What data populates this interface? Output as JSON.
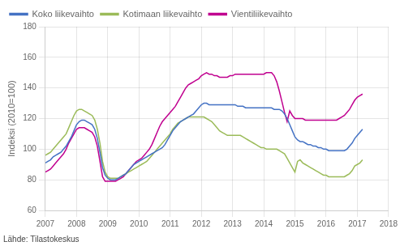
{
  "chart_data": {
    "type": "line",
    "ylabel": "Indeksi (2010=100)",
    "annotation": "Lähde: Tilastokeskus",
    "x": [
      2007,
      2007.0833333333,
      2007.1666666667,
      2007.25,
      2007.3333333333,
      2007.4166666667,
      2007.5,
      2007.5833333333,
      2007.6666666667,
      2007.75,
      2007.8333333333,
      2007.9166666667,
      2008,
      2008.0833333333,
      2008.1666666667,
      2008.25,
      2008.3333333333,
      2008.4166666667,
      2008.5,
      2008.5833333333,
      2008.6666666667,
      2008.75,
      2008.8333333333,
      2008.9166666667,
      2009,
      2009.0833333333,
      2009.1666666667,
      2009.25,
      2009.3333333333,
      2009.4166666667,
      2009.5,
      2009.5833333333,
      2009.6666666667,
      2009.75,
      2009.8333333333,
      2009.9166666667,
      2010,
      2010.0833333333,
      2010.1666666667,
      2010.25,
      2010.3333333333,
      2010.4166666667,
      2010.5,
      2010.5833333333,
      2010.6666666667,
      2010.75,
      2010.8333333333,
      2010.9166666667,
      2011,
      2011.0833333333,
      2011.1666666667,
      2011.25,
      2011.3333333333,
      2011.4166666667,
      2011.5,
      2011.5833333333,
      2011.6666666667,
      2011.75,
      2011.8333333333,
      2011.9166666667,
      2012,
      2012.0833333333,
      2012.1666666667,
      2012.25,
      2012.3333333333,
      2012.4166666667,
      2012.5,
      2012.5833333333,
      2012.6666666667,
      2012.75,
      2012.8333333333,
      2012.9166666667,
      2013,
      2013.0833333333,
      2013.1666666667,
      2013.25,
      2013.3333333333,
      2013.4166666667,
      2013.5,
      2013.5833333333,
      2013.6666666667,
      2013.75,
      2013.8333333333,
      2013.9166666667,
      2014,
      2014.0833333333,
      2014.1666666667,
      2014.25,
      2014.3333333333,
      2014.4166666667,
      2014.5,
      2014.5833333333,
      2014.6666666667,
      2014.75,
      2014.8333333333,
      2014.9166666667,
      2015,
      2015.0833333333,
      2015.1666666667,
      2015.25,
      2015.3333333333,
      2015.4166666667,
      2015.5,
      2015.5833333333,
      2015.6666666667,
      2015.75,
      2015.8333333333,
      2015.9166666667,
      2016,
      2016.0833333333,
      2016.1666666667,
      2016.25,
      2016.3333333333,
      2016.4166666667,
      2016.5,
      2016.5833333333,
      2016.6666666667,
      2016.75,
      2016.8333333333,
      2016.9166666667,
      2017,
      2017.0833333333,
      2017.1666666667
    ],
    "series": [
      {
        "name": "Koko liikevaihto",
        "color": "#4472C4",
        "values": [
          91,
          92,
          93,
          95,
          96,
          97,
          98,
          100,
          102,
          105,
          108,
          112,
          116,
          118,
          119,
          119,
          118,
          117,
          116,
          113,
          107,
          98,
          88,
          83,
          81,
          80,
          80,
          80,
          81,
          82,
          83,
          84,
          86,
          88,
          90,
          91,
          92,
          93,
          94,
          95,
          96,
          97,
          98,
          99,
          100,
          101,
          103,
          106,
          109,
          112,
          114,
          116,
          118,
          119,
          120,
          121,
          122,
          123,
          125,
          127,
          129,
          130,
          130,
          129,
          129,
          129,
          129,
          129,
          129,
          129,
          129,
          129,
          129,
          129,
          128,
          128,
          128,
          127,
          127,
          127,
          127,
          127,
          127,
          127,
          127,
          127,
          127,
          127,
          126,
          126,
          126,
          125,
          123,
          120,
          116,
          112,
          108,
          106,
          105,
          105,
          104,
          103,
          103,
          102,
          102,
          101,
          101,
          100,
          100,
          99,
          99,
          99,
          99,
          99,
          99,
          99,
          100,
          102,
          104,
          107,
          109,
          111,
          113
        ]
      },
      {
        "name": "Kotimaan liikevaihto",
        "color": "#9BBB59",
        "values": [
          96,
          97,
          98,
          100,
          102,
          104,
          106,
          108,
          110,
          114,
          118,
          122,
          125,
          126,
          126,
          125,
          124,
          123,
          122,
          119,
          113,
          104,
          92,
          85,
          82,
          81,
          81,
          81,
          81,
          82,
          83,
          84,
          85,
          86,
          87,
          88,
          89,
          90,
          91,
          92,
          94,
          96,
          98,
          100,
          102,
          104,
          106,
          108,
          110,
          113,
          115,
          117,
          118,
          119,
          120,
          121,
          121,
          121,
          121,
          121,
          121,
          121,
          120,
          119,
          118,
          116,
          114,
          112,
          111,
          110,
          109,
          109,
          109,
          109,
          109,
          109,
          108,
          107,
          106,
          105,
          104,
          103,
          102,
          101,
          101,
          100,
          100,
          100,
          100,
          100,
          99,
          98,
          97,
          94,
          91,
          88,
          85,
          92,
          93,
          91,
          90,
          89,
          88,
          87,
          86,
          85,
          84,
          83,
          83,
          82,
          82,
          82,
          82,
          82,
          82,
          82,
          83,
          84,
          86,
          89,
          90,
          91,
          93
        ]
      },
      {
        "name": "Vientiliikevaihto",
        "color": "#C0008F",
        "values": [
          85,
          86,
          87,
          89,
          91,
          93,
          95,
          97,
          100,
          104,
          107,
          110,
          113,
          114,
          114,
          114,
          113,
          112,
          111,
          108,
          102,
          92,
          82,
          79,
          79,
          79,
          79,
          79,
          80,
          81,
          82,
          84,
          86,
          88,
          90,
          92,
          93,
          94,
          96,
          98,
          100,
          103,
          107,
          111,
          115,
          118,
          120,
          122,
          124,
          126,
          128,
          131,
          134,
          137,
          140,
          142,
          143,
          144,
          145,
          146,
          148,
          149,
          150,
          149,
          149,
          148,
          148,
          147,
          147,
          147,
          147,
          148,
          148,
          149,
          149,
          149,
          149,
          149,
          149,
          149,
          149,
          149,
          149,
          149,
          149,
          150,
          150,
          150,
          148,
          144,
          138,
          131,
          124,
          118,
          125,
          122,
          120,
          120,
          120,
          120,
          119,
          119,
          119,
          119,
          119,
          119,
          119,
          119,
          119,
          119,
          119,
          119,
          119,
          120,
          121,
          122,
          124,
          126,
          129,
          132,
          134,
          135,
          136
        ]
      }
    ],
    "xlim": [
      2007,
      2018
    ],
    "ylim": [
      60,
      180
    ],
    "xticks": [
      2007,
      2008,
      2009,
      2010,
      2011,
      2012,
      2013,
      2014,
      2015,
      2016,
      2017,
      2018
    ],
    "yticks": [
      60,
      80,
      100,
      120,
      140,
      160,
      180
    ],
    "grid": true,
    "legend": "upper left"
  }
}
